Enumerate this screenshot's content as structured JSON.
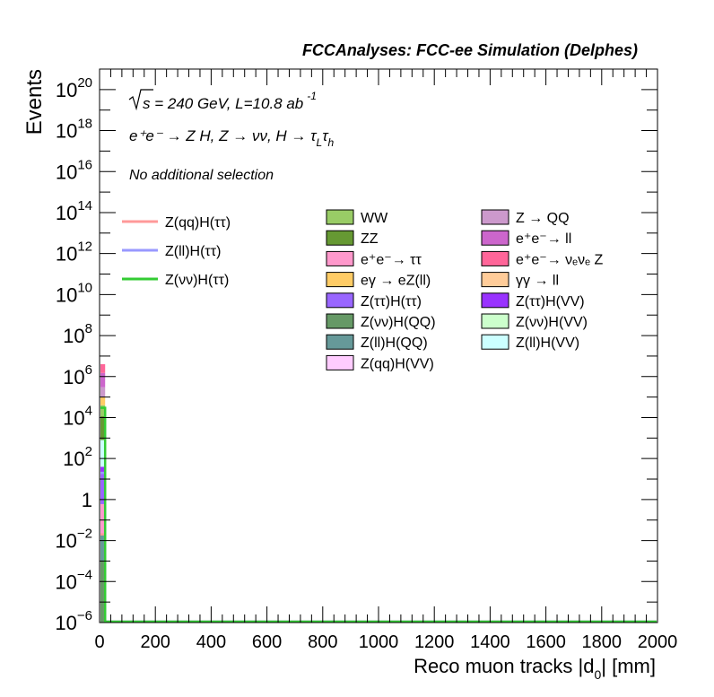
{
  "header": {
    "title": "FCCAnalyses: FCC-ee Simulation (Delphes)"
  },
  "annotations": {
    "energy_prefix": "s",
    "energy_rest": " = 240 GeV, L=10.8 ab",
    "lumi_exp": "-1",
    "process": "e⁺e⁻ → Z H, Z → νν, H → τ",
    "tau_sub1": "L",
    "tau_mid": "τ",
    "tau_sub2": "h",
    "selection": "No additional selection"
  },
  "colors": {
    "WW": "#99cc66",
    "ZZ": "#669933",
    "ee_tautau": "#ff99cc",
    "egamma_eZll": "#ffcc66",
    "Ztautau_Htautau": "#9966ff",
    "Znunu_HQQ": "#669966",
    "Zll_HQQ": "#669999",
    "Zqq_HVV": "#ffccff",
    "Z_QQ": "#cc99cc",
    "ee_ll": "#cc66cc",
    "ee_nunuZ": "#ff6699",
    "gammagamma_ll": "#ffcc99",
    "Ztautau_HVV": "#9933ff",
    "Znunu_HVV": "#ccffcc",
    "Zll_HVV": "#ccffff",
    "sig_qq": "#ff9999",
    "sig_ll": "#9999ff",
    "sig_nunu": "#33cc33"
  },
  "legend_signals": [
    {
      "label": "Z(qq)H(ττ)",
      "color": "#ff9999"
    },
    {
      "label": "Z(ll)H(ττ)",
      "color": "#9999ff"
    },
    {
      "label": "Z(νν)H(ττ)",
      "color": "#33cc33"
    }
  ],
  "legend_bkg_col1": [
    {
      "label": "WW",
      "color": "#99cc66"
    },
    {
      "label": "ZZ",
      "color": "#669933"
    },
    {
      "label": "e⁺e⁻→ ττ",
      "color": "#ff99cc"
    },
    {
      "label": "eγ → eZ(ll)",
      "color": "#ffcc66"
    },
    {
      "label": "Z(ττ)H(ττ)",
      "color": "#9966ff"
    },
    {
      "label": "Z(νν)H(QQ)",
      "color": "#669966"
    },
    {
      "label": "Z(ll)H(QQ)",
      "color": "#669999"
    },
    {
      "label": "Z(qq)H(VV)",
      "color": "#ffccff"
    }
  ],
  "legend_bkg_col2": [
    {
      "label": "Z → QQ",
      "color": "#cc99cc"
    },
    {
      "label": "e⁺e⁻→ ll",
      "color": "#cc66cc"
    },
    {
      "label": "e⁺e⁻→ νₑνₑ Z",
      "color": "#ff6699"
    },
    {
      "label": "γγ → ll",
      "color": "#ffcc99"
    },
    {
      "label": "Z(ττ)H(VV)",
      "color": "#9933ff"
    },
    {
      "label": "Z(νν)H(VV)",
      "color": "#ccffcc"
    },
    {
      "label": "Z(ll)H(VV)",
      "color": "#ccffff"
    }
  ],
  "chart_data": {
    "type": "bar",
    "stacked": true,
    "log_y": true,
    "title": "FCCAnalyses: FCC-ee Simulation (Delphes)",
    "xlabel": "Reco muon tracks |d0| [mm]",
    "ylabel": "Events",
    "xlim": [
      0,
      2000
    ],
    "ylim": [
      1e-06,
      1e+21
    ],
    "x_ticks": [
      "0",
      "200",
      "400",
      "600",
      "800",
      "1000",
      "1200",
      "1400",
      "1600",
      "1800",
      "2000"
    ],
    "y_ticks": [
      {
        "mant": "10",
        "exp": "−6",
        "value": 1e-06
      },
      {
        "mant": "10",
        "exp": "−4",
        "value": 0.0001
      },
      {
        "mant": "10",
        "exp": "−2",
        "value": 0.01
      },
      {
        "mant": "1",
        "exp": "",
        "value": 1
      },
      {
        "mant": "10",
        "exp": "2",
        "value": 100.0
      },
      {
        "mant": "10",
        "exp": "4",
        "value": 10000.0
      },
      {
        "mant": "10",
        "exp": "6",
        "value": 1000000.0
      },
      {
        "mant": "10",
        "exp": "8",
        "value": 100000000.0
      },
      {
        "mant": "10",
        "exp": "10",
        "value": 10000000000.0
      },
      {
        "mant": "10",
        "exp": "12",
        "value": 1000000000000.0
      },
      {
        "mant": "10",
        "exp": "14",
        "value": 100000000000000.0
      },
      {
        "mant": "10",
        "exp": "16",
        "value": 1e+16
      },
      {
        "mant": "10",
        "exp": "18",
        "value": 1e+18
      },
      {
        "mant": "10",
        "exp": "20",
        "value": 1e+20
      }
    ],
    "bin_x": [
      0,
      20
    ],
    "stack": [
      {
        "name": "Z(νν)H(QQ)",
        "color": "#669966",
        "lo": 1e-06,
        "hi": 0.001
      },
      {
        "name": "Z(ll)H(QQ)",
        "color": "#669999",
        "lo": 0.001,
        "hi": 0.02
      },
      {
        "name": "e⁺e⁻→ ττ",
        "color": "#ff99cc",
        "lo": 0.02,
        "hi": 0.6
      },
      {
        "name": "Z(ττ)H(ττ)",
        "color": "#9966ff",
        "lo": 0.6,
        "hi": 18
      },
      {
        "name": "Z(ττ)H(VV)",
        "color": "#9933ff",
        "lo": 18,
        "hi": 40
      },
      {
        "name": "Z(ll)H(VV)",
        "color": "#ccffff",
        "lo": 40,
        "hi": 800
      },
      {
        "name": "ZZ",
        "color": "#669933",
        "lo": 800,
        "hi": 12000
      },
      {
        "name": "WW",
        "color": "#99cc66",
        "lo": 12000,
        "hi": 40000
      },
      {
        "name": "eγ → eZ(ll)",
        "color": "#ffcc66",
        "lo": 40000,
        "hi": 100000
      },
      {
        "name": "Z → QQ",
        "color": "#cc99cc",
        "lo": 100000,
        "hi": 300000
      },
      {
        "name": "e⁺e⁻→ ll",
        "color": "#cc66cc",
        "lo": 300000,
        "hi": 1500000
      },
      {
        "name": "e⁺e⁻→ νₑνₑ Z",
        "color": "#ff6699",
        "lo": 1500000,
        "hi": 4000000
      }
    ],
    "signal_lines": [
      {
        "name": "Z(qq)H(ττ)",
        "color": "#ff9999",
        "first_bin": 0.02
      },
      {
        "name": "Z(ll)H(ττ)",
        "color": "#9999ff",
        "first_bin": 20
      },
      {
        "name": "Z(νν)H(ττ)",
        "color": "#33cc33",
        "first_bin": 30000
      }
    ]
  }
}
